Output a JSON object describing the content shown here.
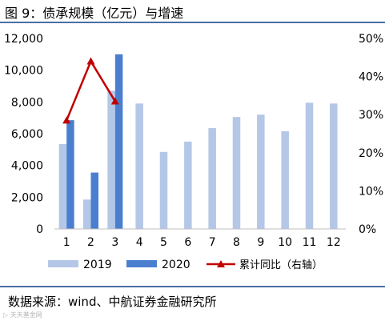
{
  "header": {
    "title": "图 9：债承规模（亿元）与增速"
  },
  "footer": {
    "source": "数据来源：wind、中航证券金融研究所",
    "watermark": "▷ 天天基金网"
  },
  "chart_data": {
    "type": "bar",
    "categories": [
      "1",
      "2",
      "3",
      "4",
      "5",
      "6",
      "7",
      "8",
      "9",
      "10",
      "11",
      "12"
    ],
    "series": [
      {
        "name": "2019",
        "type": "bar",
        "axis": "left",
        "color": "#b4c7e7",
        "values": [
          5350,
          1850,
          8700,
          7900,
          4850,
          5500,
          6350,
          7050,
          7200,
          6150,
          7950,
          7900
        ]
      },
      {
        "name": "2020",
        "type": "bar",
        "axis": "left",
        "color": "#4a7fd0",
        "values": [
          6850,
          3550,
          11000,
          null,
          null,
          null,
          null,
          null,
          null,
          null,
          null,
          null
        ]
      },
      {
        "name": "累计同比（右轴）",
        "type": "line",
        "axis": "right",
        "color": "#c00000",
        "marker": "triangle",
        "values": [
          0.285,
          0.44,
          0.335,
          null,
          null,
          null,
          null,
          null,
          null,
          null,
          null,
          null
        ]
      }
    ],
    "y_left": {
      "min": 0,
      "max": 12000,
      "ticks": [
        0,
        2000,
        4000,
        6000,
        8000,
        10000,
        12000
      ],
      "tick_labels": [
        "0",
        "2,000",
        "4,000",
        "6,000",
        "8,000",
        "10,000",
        "12,000"
      ]
    },
    "y_right": {
      "min": 0,
      "max": 0.5,
      "ticks": [
        0,
        0.1,
        0.2,
        0.3,
        0.4,
        0.5
      ],
      "tick_labels": [
        "0%",
        "10%",
        "20%",
        "30%",
        "40%",
        "50%"
      ]
    },
    "grid": false,
    "legend_position": "bottom"
  }
}
